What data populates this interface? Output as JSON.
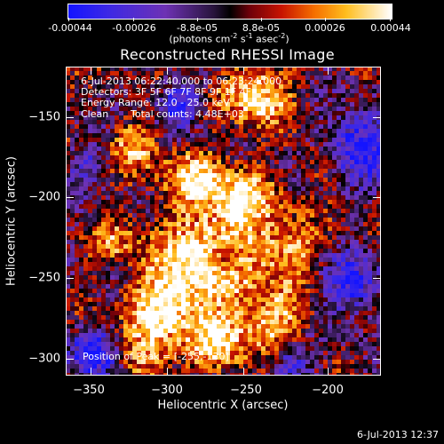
{
  "colorbar": {
    "ticks": [
      "-0.00044",
      "-0.00026",
      "-8.8e-05",
      "8.8e-05",
      "0.00026",
      "0.00044"
    ],
    "tick_values": [
      -0.00044,
      -0.00026,
      -8.8e-05,
      8.8e-05,
      0.00026,
      0.00044
    ],
    "unit_prefix": "(photons cm",
    "unit_exp1": "-2",
    "unit_mid1": " s",
    "unit_exp2": "-1",
    "unit_mid2": " asec",
    "unit_exp3": "-2",
    "unit_suffix": ")"
  },
  "chart_data": {
    "type": "heatmap",
    "title": "Reconstructed RHESSI Image",
    "xlabel": "Heliocentric X (arcsec)",
    "ylabel": "Heliocentric Y (arcsec)",
    "xlim": [
      -362,
      -172
    ],
    "ylim": [
      -312,
      -127
    ],
    "x_ticks": [
      -350,
      -300,
      -250,
      -200
    ],
    "y_ticks": [
      -150,
      -200,
      -250,
      -300
    ],
    "x_tick_labels": [
      "−350",
      "−300",
      "−250",
      "−200"
    ],
    "y_tick_labels": [
      "−150",
      "−200",
      "−250",
      "−300"
    ],
    "value_range": [
      -0.00044,
      0.00044
    ],
    "peak_position": [
      -255,
      -130
    ]
  },
  "annotations": {
    "time_range": "6-Jul-2013 06:22:40.000 to 06:23:24.000",
    "detectors": "Detectors: 3F 5F 6F 7F 8F 9F 1F 4F",
    "energy_range": "Energy Range: 12.0 - 25.0 keV",
    "clean_label": "Clean",
    "total_counts": "Total counts: 4.48E+03",
    "peak_position": "Position of Peak = [-255,-130]"
  },
  "footer": {
    "timestamp": "6-Jul-2013 12:37"
  }
}
